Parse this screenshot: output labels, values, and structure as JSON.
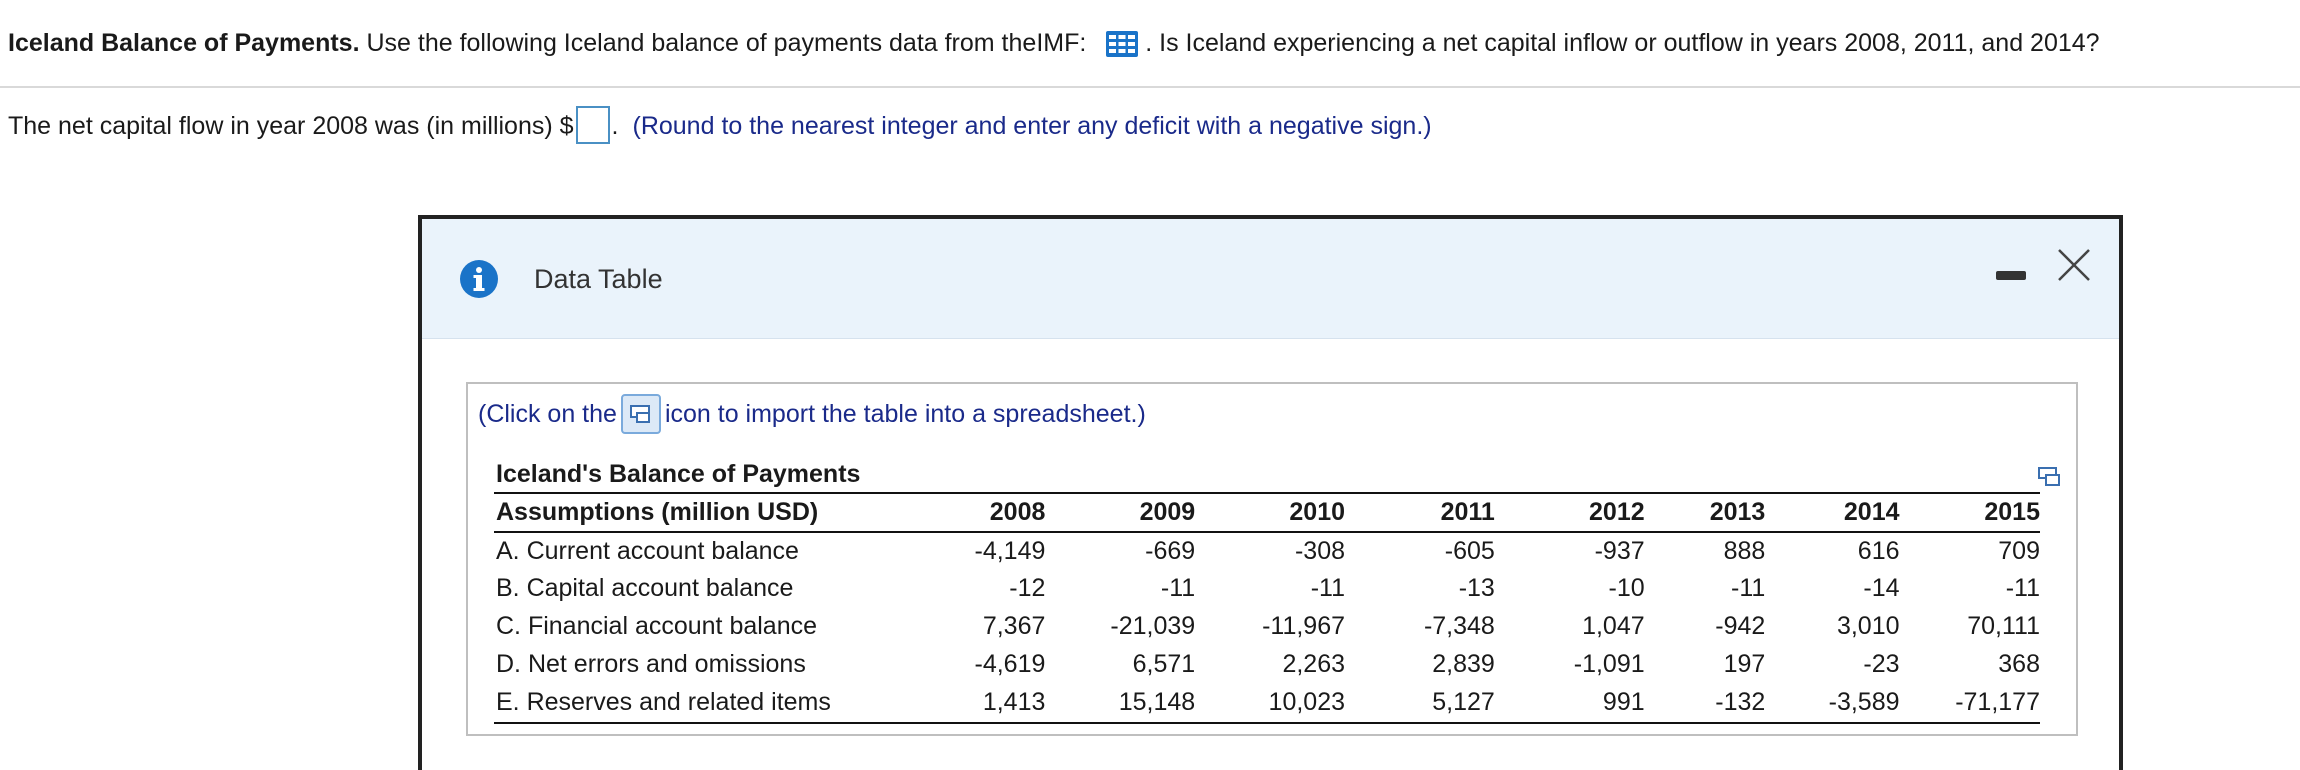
{
  "question": {
    "bold_title": "Iceland Balance of Payments.",
    "text_before_icon": " Use the following Iceland balance of payments data from theIMF: ",
    "text_after_icon": ". Is Iceland experiencing a net capital inflow or outflow in years 2008, 2011, and 2014?",
    "icon": "spreadsheet-grid-icon"
  },
  "answer": {
    "prefix": "The net capital flow in year 2008 was (in millions) $",
    "input_value": "",
    "suffix": ".",
    "hint": "(Round to the nearest integer and enter any deficit with a negative sign.)"
  },
  "dialog": {
    "title": "Data Table",
    "import_text_before": "(Click on the",
    "import_text_after": "icon to import the table into a spreadsheet.)",
    "table": {
      "title": "Iceland's Balance of Payments",
      "header_label": "Assumptions (million USD)",
      "years": [
        "2008",
        "2009",
        "2010",
        "2011",
        "2012",
        "2013",
        "2014",
        "2015"
      ],
      "rows": [
        {
          "label": "A. Current account balance",
          "values": [
            "-4,149",
            "-669",
            "-308",
            "-605",
            "-937",
            "888",
            "616",
            "709"
          ]
        },
        {
          "label": "B. Capital account balance",
          "values": [
            "-12",
            "-11",
            "-11",
            "-13",
            "-10",
            "-11",
            "-14",
            "-11"
          ]
        },
        {
          "label": "C. Financial account balance",
          "values": [
            "7,367",
            "-21,039",
            "-11,967",
            "-7,348",
            "1,047",
            "-942",
            "3,010",
            "70,111"
          ]
        },
        {
          "label": "D. Net errors and omissions",
          "values": [
            "-4,619",
            "6,571",
            "2,263",
            "2,839",
            "-1,091",
            "197",
            "-23",
            "368"
          ]
        },
        {
          "label": "E.  Reserves and related items",
          "values": [
            "1,413",
            "15,148",
            "10,023",
            "5,127",
            "991",
            "-132",
            "-3,589",
            "-71,177"
          ]
        }
      ]
    }
  },
  "colors": {
    "accent_blue": "#1a73c8",
    "hint_text": "#1a2a8a",
    "dialog_header_bg": "#eaf3fb"
  }
}
